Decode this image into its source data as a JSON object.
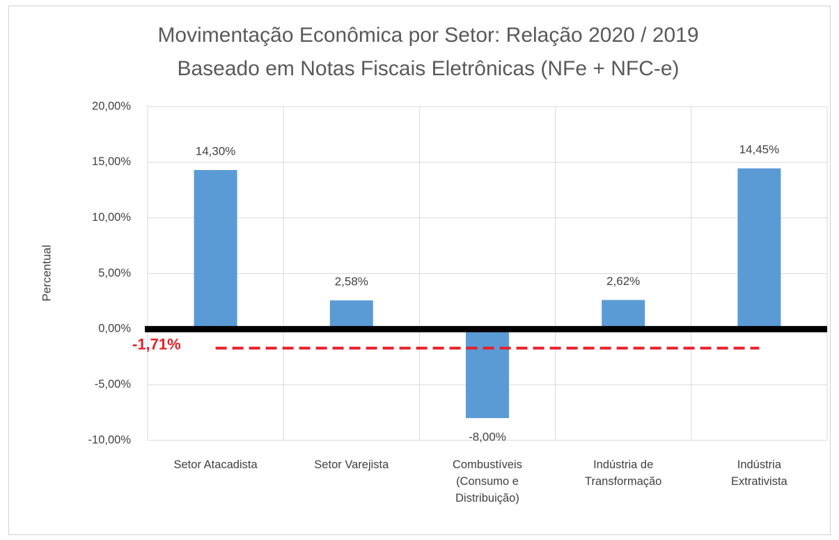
{
  "chart_data": {
    "type": "bar",
    "title": "Movimentação Econômica por Setor: Relação 2020 / 2019",
    "subtitle": "Baseado em Notas Fiscais Eletrônicas (NFe + NFC-e)",
    "y_label": "Percentual",
    "categories": [
      "Setor Atacadista",
      "Setor Varejista",
      "Combustíveis (Consumo e Distribuição)",
      "Indústria de Transformação",
      "Indústria Extrativista"
    ],
    "values": [
      14.3,
      2.58,
      -8.0,
      2.62,
      14.45
    ],
    "value_labels": [
      "14,30%",
      "2,58%",
      "-8,00%",
      "2,62%",
      "14,45%"
    ],
    "color": "#5b9bd5",
    "ylim": [
      -10,
      20
    ],
    "yticks": [
      {
        "value": -10,
        "label": "-10,00%"
      },
      {
        "value": -5,
        "label": "-5,00%"
      },
      {
        "value": 0,
        "label": "0,00%"
      },
      {
        "value": 5,
        "label": "5,00%"
      },
      {
        "value": 10,
        "label": "10,00%"
      },
      {
        "value": 15,
        "label": "15,00%"
      },
      {
        "value": 20,
        "label": "20,00%"
      }
    ],
    "grid": true,
    "reference_line": {
      "value": -1.71,
      "label": "-1,71%",
      "color": "#e8202a"
    }
  }
}
